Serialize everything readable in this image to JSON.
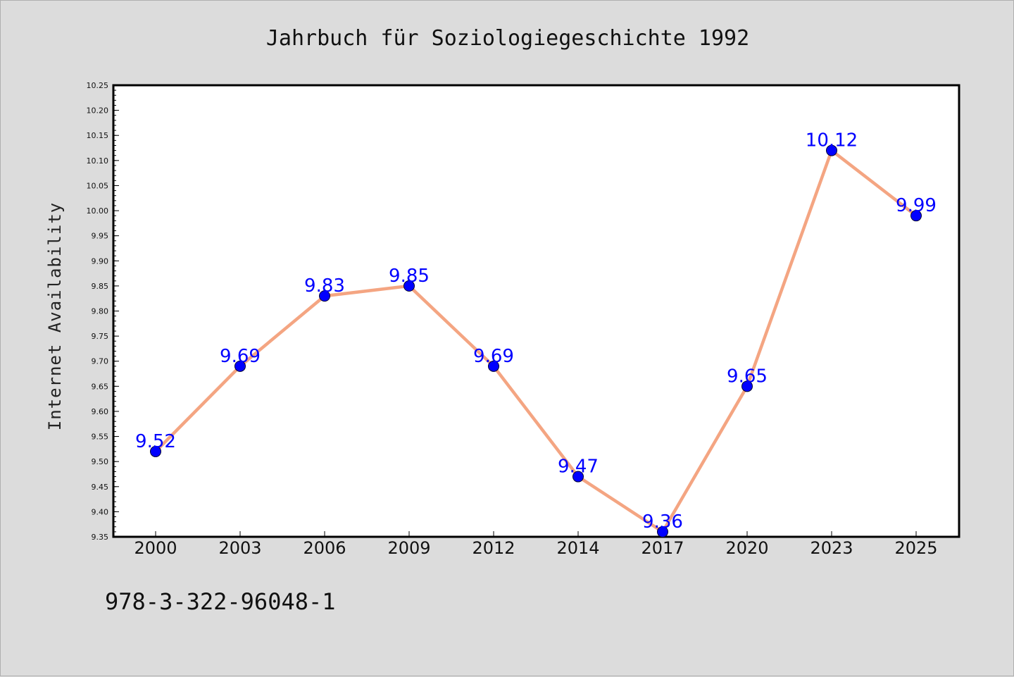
{
  "chart_data": {
    "type": "line",
    "title": "Jahrbuch für Soziologiegeschichte 1992",
    "ylabel": "Internet Availability",
    "xlabel": "",
    "categories": [
      "2000",
      "2003",
      "2006",
      "2009",
      "2012",
      "2014",
      "2017",
      "2020",
      "2023",
      "2025"
    ],
    "series": [
      {
        "values": [
          9.52,
          9.69,
          9.83,
          9.85,
          9.69,
          9.47,
          9.36,
          9.65,
          10.12,
          9.99
        ],
        "labels": [
          "9.52",
          "9.69",
          "9.83",
          "9.85",
          "9.69",
          "9.47",
          "9.36",
          "9.65",
          "10.12",
          "9.99"
        ],
        "line_color": "#f4a582",
        "marker_color": "#0000ff"
      }
    ],
    "ylim": [
      9.35,
      10.25
    ],
    "yticks": [
      "9.35",
      "9.40",
      "9.45",
      "9.50",
      "9.55",
      "9.60",
      "9.65",
      "9.70",
      "9.75",
      "9.80",
      "9.85",
      "9.90",
      "9.95",
      "10.00",
      "10.05",
      "10.10",
      "10.15",
      "10.20",
      "10.25"
    ],
    "grid": false,
    "legend": "none"
  },
  "footer": {
    "isbn": "978-3-322-96048-1"
  },
  "colors": {
    "background": "#dcdcdc",
    "plot_background": "#ffffff",
    "axis": "#000000",
    "label": "#0000ff"
  }
}
